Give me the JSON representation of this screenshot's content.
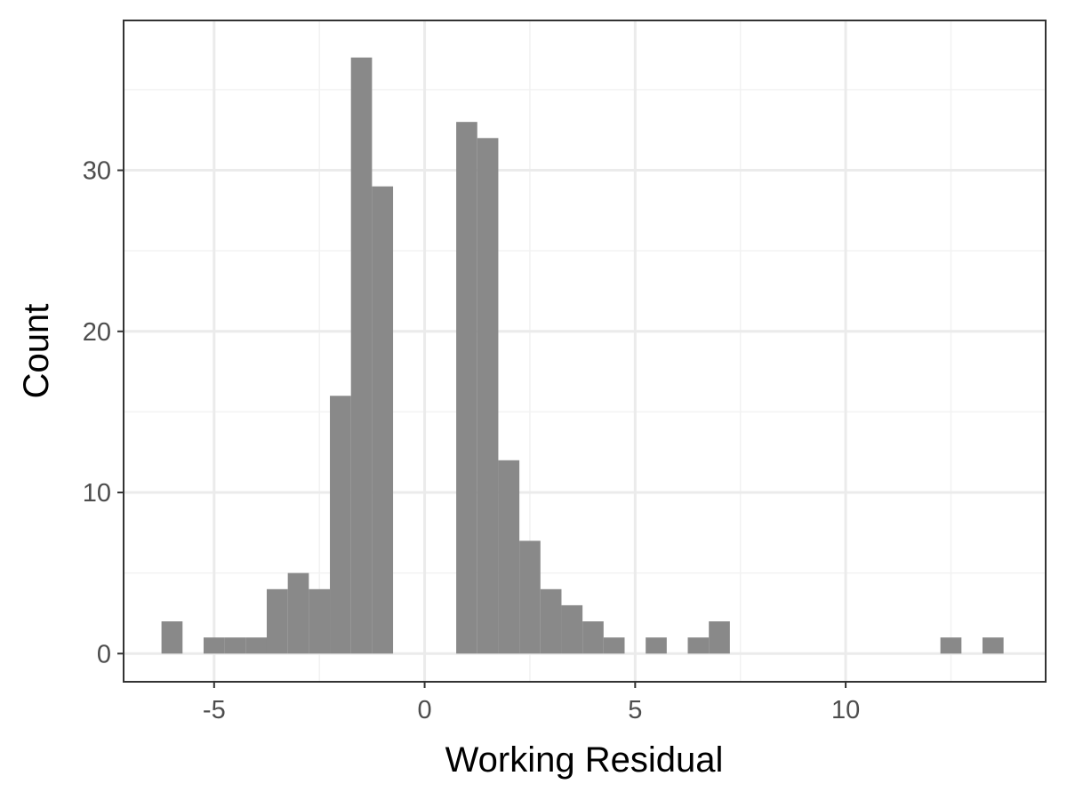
{
  "chart_data": {
    "type": "bar",
    "title": "",
    "xlabel": "Working Residual",
    "ylabel": "Count",
    "xlim": [
      -7.15,
      14.75
    ],
    "ylim": [
      -1.75,
      39.3
    ],
    "x_ticks": [
      -5,
      0,
      5,
      10
    ],
    "x_tick_labels": [
      "-5",
      "0",
      "5",
      "10"
    ],
    "y_ticks": [
      0,
      10,
      20,
      30
    ],
    "y_tick_labels": [
      "0",
      "10",
      "20",
      "30"
    ],
    "grid": true,
    "bin_width": 0.5,
    "bins": [
      {
        "x": -6.0,
        "count": 2
      },
      {
        "x": -5.0,
        "count": 1
      },
      {
        "x": -4.5,
        "count": 1
      },
      {
        "x": -4.0,
        "count": 1
      },
      {
        "x": -3.5,
        "count": 4
      },
      {
        "x": -3.0,
        "count": 5
      },
      {
        "x": -2.5,
        "count": 4
      },
      {
        "x": -2.0,
        "count": 16
      },
      {
        "x": -1.5,
        "count": 37
      },
      {
        "x": -1.0,
        "count": 29
      },
      {
        "x": 1.0,
        "count": 33
      },
      {
        "x": 1.5,
        "count": 32
      },
      {
        "x": 2.0,
        "count": 12
      },
      {
        "x": 2.5,
        "count": 7
      },
      {
        "x": 3.0,
        "count": 4
      },
      {
        "x": 3.5,
        "count": 3
      },
      {
        "x": 4.0,
        "count": 2
      },
      {
        "x": 4.5,
        "count": 1
      },
      {
        "x": 5.5,
        "count": 1
      },
      {
        "x": 6.5,
        "count": 1
      },
      {
        "x": 7.0,
        "count": 2
      },
      {
        "x": 12.5,
        "count": 1
      },
      {
        "x": 13.5,
        "count": 1
      }
    ],
    "colors": {
      "bar": "#898989",
      "panel_border": "#333333",
      "grid_major": "#ebebeb",
      "grid_minor": "#f2f2f2",
      "tick_mark": "#333333"
    }
  }
}
